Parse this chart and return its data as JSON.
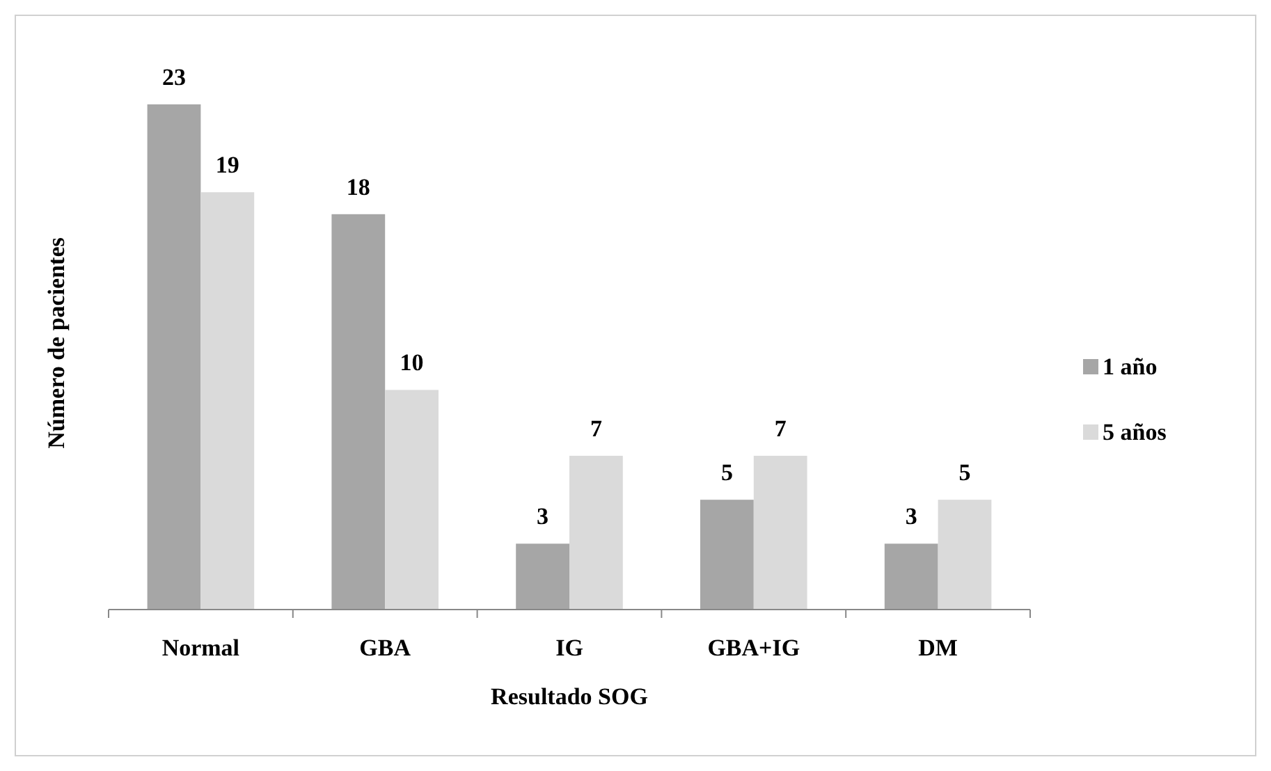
{
  "chart_data": {
    "type": "bar",
    "xlabel": "Resultado SOG",
    "ylabel": "Número de pacientes",
    "categories": [
      "Normal",
      "GBA",
      "IG",
      "GBA+IG",
      "DM"
    ],
    "series": [
      {
        "name": "1 año",
        "color": "#a6a6a6",
        "values": [
          23,
          18,
          3,
          5,
          3
        ]
      },
      {
        "name": "5 años",
        "color": "#dadada",
        "values": [
          19,
          10,
          7,
          7,
          5
        ]
      }
    ],
    "data_labels": true,
    "legend": "right"
  }
}
